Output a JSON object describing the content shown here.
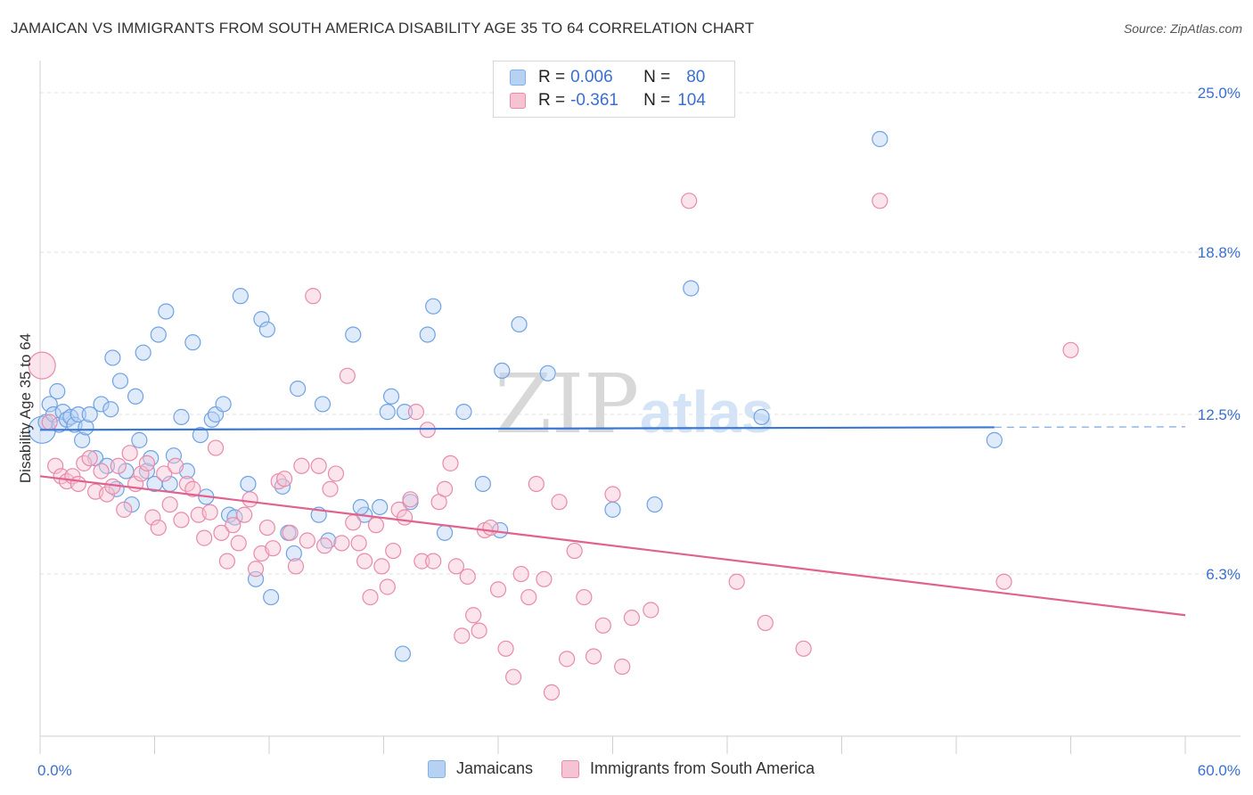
{
  "title": "JAMAICAN VS IMMIGRANTS FROM SOUTH AMERICA DISABILITY AGE 35 TO 64 CORRELATION CHART",
  "source": "Source: ZipAtlas.com",
  "watermark": {
    "zip": "ZIP",
    "atlas": "atlas"
  },
  "legend": {
    "r_label": "R =",
    "n_label": "N =",
    "series": [
      {
        "name": "Jamaicans",
        "r": "0.006",
        "n": "80",
        "color": "#7fb0e8",
        "fill": "#b7d1f3"
      },
      {
        "name": "Immigrants from South America",
        "r": "-0.361",
        "n": "104",
        "color": "#e98aa9",
        "fill": "#f6c3d3"
      }
    ]
  },
  "chart_data": {
    "type": "scatter",
    "title": "JAMAICAN VS IMMIGRANTS FROM SOUTH AMERICA DISABILITY AGE 35 TO 64 CORRELATION CHART",
    "xlabel": "",
    "ylabel": "Disability Age 35 to 64",
    "xlim": [
      0,
      60
    ],
    "ylim": [
      0,
      25.9
    ],
    "x_tick_labels": [
      "0.0%",
      "60.0%"
    ],
    "y_tick_values": [
      6.3,
      12.5,
      18.8,
      25.0
    ],
    "y_tick_labels": [
      "6.3%",
      "12.5%",
      "18.8%",
      "25.0%"
    ],
    "grid": true,
    "legend_position": "top-center",
    "series": [
      {
        "name": "Jamaicans",
        "color": "#3a78d4",
        "trend": {
          "x": [
            0,
            50
          ],
          "y": [
            11.9,
            12.0
          ],
          "dashed_extension_to": 60
        },
        "points": [
          [
            0.1,
            11.9
          ],
          [
            0.3,
            12.2
          ],
          [
            0.5,
            12.9
          ],
          [
            0.7,
            12.5
          ],
          [
            0.9,
            13.4
          ],
          [
            1.0,
            12.1
          ],
          [
            1.2,
            12.6
          ],
          [
            1.4,
            12.3
          ],
          [
            1.6,
            12.4
          ],
          [
            1.8,
            12.1
          ],
          [
            2.0,
            12.5
          ],
          [
            2.2,
            11.5
          ],
          [
            2.4,
            12.0
          ],
          [
            2.6,
            12.5
          ],
          [
            2.9,
            10.8
          ],
          [
            3.2,
            12.9
          ],
          [
            3.5,
            10.5
          ],
          [
            3.7,
            12.7
          ],
          [
            3.8,
            14.7
          ],
          [
            4.0,
            9.6
          ],
          [
            4.2,
            13.8
          ],
          [
            4.5,
            10.3
          ],
          [
            4.8,
            9.0
          ],
          [
            5.0,
            13.2
          ],
          [
            5.2,
            11.5
          ],
          [
            5.4,
            14.9
          ],
          [
            5.6,
            10.3
          ],
          [
            5.8,
            10.8
          ],
          [
            6.0,
            9.8
          ],
          [
            6.2,
            15.6
          ],
          [
            6.6,
            16.5
          ],
          [
            6.8,
            9.8
          ],
          [
            7.0,
            10.9
          ],
          [
            7.4,
            12.4
          ],
          [
            7.7,
            10.3
          ],
          [
            8.0,
            15.3
          ],
          [
            8.4,
            11.7
          ],
          [
            8.7,
            9.3
          ],
          [
            9.0,
            12.3
          ],
          [
            9.2,
            12.5
          ],
          [
            9.6,
            12.9
          ],
          [
            9.9,
            8.6
          ],
          [
            10.2,
            8.5
          ],
          [
            10.5,
            17.1
          ],
          [
            10.9,
            9.8
          ],
          [
            11.3,
            6.1
          ],
          [
            11.6,
            16.2
          ],
          [
            11.9,
            15.8
          ],
          [
            12.1,
            5.4
          ],
          [
            12.7,
            9.7
          ],
          [
            13.0,
            7.9
          ],
          [
            13.3,
            7.1
          ],
          [
            13.5,
            13.5
          ],
          [
            14.6,
            8.6
          ],
          [
            14.8,
            12.9
          ],
          [
            15.1,
            7.6
          ],
          [
            16.4,
            15.6
          ],
          [
            17.0,
            8.6
          ],
          [
            17.8,
            8.9
          ],
          [
            18.2,
            12.6
          ],
          [
            18.4,
            13.2
          ],
          [
            19.1,
            12.6
          ],
          [
            19.4,
            9.1
          ],
          [
            20.3,
            15.6
          ],
          [
            20.6,
            16.7
          ],
          [
            21.2,
            7.9
          ],
          [
            22.2,
            12.6
          ],
          [
            23.2,
            9.8
          ],
          [
            24.1,
            8.0
          ],
          [
            24.2,
            14.2
          ],
          [
            25.1,
            16
          ],
          [
            26.6,
            14.1
          ],
          [
            30.0,
            8.8
          ],
          [
            32.2,
            9.0
          ],
          [
            34.1,
            17.4
          ],
          [
            37.8,
            12.4
          ],
          [
            44.0,
            23.2
          ],
          [
            50.0,
            11.5
          ],
          [
            19.0,
            3.2
          ],
          [
            16.8,
            8.9
          ]
        ]
      },
      {
        "name": "Immigrants from South America",
        "color": "#e0628f",
        "trend": {
          "x": [
            0,
            60
          ],
          "y": [
            10.1,
            4.7
          ]
        },
        "points": [
          [
            0.1,
            14.4
          ],
          [
            0.5,
            12.2
          ],
          [
            0.8,
            10.5
          ],
          [
            1.1,
            10.1
          ],
          [
            1.4,
            9.9
          ],
          [
            1.7,
            10.1
          ],
          [
            2.0,
            9.8
          ],
          [
            2.3,
            10.6
          ],
          [
            2.6,
            10.8
          ],
          [
            2.9,
            9.5
          ],
          [
            3.2,
            10.3
          ],
          [
            3.5,
            9.4
          ],
          [
            3.8,
            9.7
          ],
          [
            4.1,
            10.5
          ],
          [
            4.4,
            8.8
          ],
          [
            4.7,
            11.0
          ],
          [
            5.0,
            9.8
          ],
          [
            5.3,
            10.2
          ],
          [
            5.6,
            10.6
          ],
          [
            5.9,
            8.5
          ],
          [
            6.2,
            8.1
          ],
          [
            6.5,
            10.2
          ],
          [
            6.8,
            9.0
          ],
          [
            7.1,
            10.5
          ],
          [
            7.4,
            8.4
          ],
          [
            7.7,
            9.8
          ],
          [
            8.0,
            9.6
          ],
          [
            8.3,
            8.6
          ],
          [
            8.6,
            7.7
          ],
          [
            8.9,
            8.7
          ],
          [
            9.2,
            11.2
          ],
          [
            9.5,
            7.9
          ],
          [
            9.8,
            6.8
          ],
          [
            10.1,
            8.2
          ],
          [
            10.4,
            7.5
          ],
          [
            10.7,
            8.6
          ],
          [
            11.0,
            9.2
          ],
          [
            11.3,
            6.5
          ],
          [
            11.6,
            7.1
          ],
          [
            11.9,
            8.1
          ],
          [
            12.2,
            7.3
          ],
          [
            12.5,
            9.9
          ],
          [
            12.8,
            10.0
          ],
          [
            13.1,
            7.9
          ],
          [
            13.4,
            6.6
          ],
          [
            13.7,
            10.5
          ],
          [
            14.0,
            7.6
          ],
          [
            14.3,
            17.1
          ],
          [
            14.6,
            10.5
          ],
          [
            14.9,
            7.4
          ],
          [
            15.2,
            9.6
          ],
          [
            15.5,
            10.2
          ],
          [
            15.8,
            7.5
          ],
          [
            16.1,
            14.0
          ],
          [
            16.4,
            8.3
          ],
          [
            16.7,
            7.5
          ],
          [
            17.0,
            6.8
          ],
          [
            17.3,
            5.4
          ],
          [
            17.6,
            8.2
          ],
          [
            17.9,
            6.6
          ],
          [
            18.2,
            5.8
          ],
          [
            18.5,
            7.2
          ],
          [
            18.8,
            8.8
          ],
          [
            19.1,
            8.5
          ],
          [
            19.4,
            9.2
          ],
          [
            19.7,
            12.6
          ],
          [
            20.0,
            6.8
          ],
          [
            20.3,
            11.9
          ],
          [
            20.6,
            6.8
          ],
          [
            20.9,
            9.1
          ],
          [
            21.2,
            9.6
          ],
          [
            21.5,
            10.6
          ],
          [
            21.8,
            6.6
          ],
          [
            22.1,
            3.9
          ],
          [
            22.4,
            6.2
          ],
          [
            22.7,
            4.7
          ],
          [
            23.0,
            4.1
          ],
          [
            23.3,
            8.0
          ],
          [
            23.6,
            8.1
          ],
          [
            24.0,
            5.7
          ],
          [
            24.4,
            3.4
          ],
          [
            24.8,
            2.3
          ],
          [
            25.2,
            6.3
          ],
          [
            25.6,
            5.4
          ],
          [
            26.0,
            9.8
          ],
          [
            26.4,
            6.1
          ],
          [
            26.8,
            1.7
          ],
          [
            27.2,
            9.1
          ],
          [
            27.6,
            3.0
          ],
          [
            28.0,
            7.2
          ],
          [
            28.5,
            5.4
          ],
          [
            29.0,
            3.1
          ],
          [
            29.5,
            4.3
          ],
          [
            30.0,
            9.4
          ],
          [
            30.5,
            2.7
          ],
          [
            31.0,
            4.6
          ],
          [
            32.0,
            4.9
          ],
          [
            34.0,
            20.8
          ],
          [
            36.5,
            6.0
          ],
          [
            38.0,
            4.4
          ],
          [
            40.0,
            3.4
          ],
          [
            44.0,
            20.8
          ],
          [
            50.5,
            6.0
          ],
          [
            54.0,
            15.0
          ]
        ]
      }
    ]
  },
  "bottom_legend": [
    "Jamaicans",
    "Immigrants from South America"
  ]
}
